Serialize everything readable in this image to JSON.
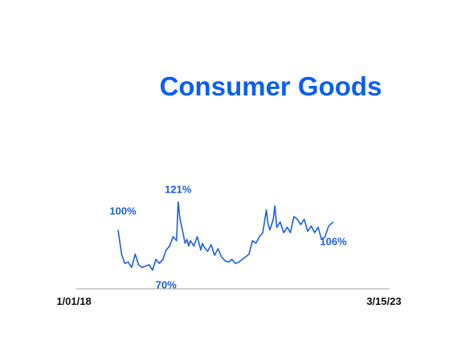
{
  "chart_data": {
    "type": "line",
    "title": "Consumer Goods",
    "xlabel": "",
    "ylabel": "",
    "x_tick_labels": [
      "1/01/18",
      "3/15/23"
    ],
    "ylim": [
      50,
      140
    ],
    "grid": false,
    "colors": {
      "series": "#1a5fe0",
      "title": "#0b5ff0",
      "annotation": "#1a5fe0",
      "axis": "#9e9e9e"
    },
    "annotations": [
      {
        "text": "100%",
        "x": "2018-01-01",
        "y": 100
      },
      {
        "text": "121%",
        "x": "2019-06-15",
        "y": 121
      },
      {
        "text": "70%",
        "x": "2019-03-01",
        "y": 70
      },
      {
        "text": "106%",
        "x": "2023-03-15",
        "y": 106
      }
    ],
    "series": [
      {
        "x": [
          "2018-01-01",
          "2018-02-01",
          "2018-03-01",
          "2018-04-01",
          "2018-05-01",
          "2018-06-01",
          "2018-07-01",
          "2018-08-01",
          "2018-09-01",
          "2018-10-01",
          "2018-11-01",
          "2018-12-01",
          "2019-01-01",
          "2019-02-01",
          "2019-03-01",
          "2019-04-01",
          "2019-05-01",
          "2019-06-01",
          "2019-06-15",
          "2019-07-01",
          "2019-07-15",
          "2019-08-01",
          "2019-08-15",
          "2019-09-01",
          "2019-09-15",
          "2019-10-01",
          "2019-11-01",
          "2019-12-01",
          "2020-01-01",
          "2020-01-15",
          "2020-02-01",
          "2020-03-01",
          "2020-04-01",
          "2020-05-01",
          "2020-06-01",
          "2020-07-01",
          "2020-08-01",
          "2020-09-01",
          "2020-10-01",
          "2020-11-01",
          "2020-12-01",
          "2021-01-01",
          "2021-02-01",
          "2021-03-01",
          "2021-04-01",
          "2021-05-01",
          "2021-06-01",
          "2021-07-01",
          "2021-08-01",
          "2021-08-15",
          "2021-09-01",
          "2021-10-01",
          "2021-10-15",
          "2021-11-01",
          "2021-12-01",
          "2022-01-01",
          "2022-02-01",
          "2022-03-01",
          "2022-04-01",
          "2022-05-01",
          "2022-06-01",
          "2022-07-01",
          "2022-08-01",
          "2022-09-01",
          "2022-10-01",
          "2022-11-01",
          "2022-12-01",
          "2023-01-01",
          "2023-02-01",
          "2023-03-15"
        ],
        "values": [
          100,
          82,
          75,
          76,
          72,
          82,
          74,
          72,
          73,
          74,
          70,
          78,
          75,
          78,
          85,
          88,
          95,
          92,
          121,
          108,
          103,
          96,
          90,
          93,
          88,
          92,
          88,
          95,
          85,
          90,
          87,
          84,
          89,
          81,
          86,
          80,
          77,
          76,
          78,
          75,
          76,
          78,
          80,
          82,
          92,
          90,
          95,
          98,
          115,
          105,
          100,
          108,
          118,
          102,
          106,
          98,
          102,
          98,
          110,
          108,
          104,
          108,
          99,
          103,
          98,
          102,
          93,
          95,
          103,
          106
        ]
      }
    ]
  }
}
